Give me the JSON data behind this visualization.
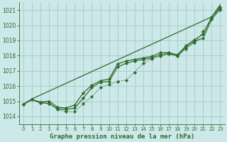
{
  "title": "Graphe pression niveau de la mer (hPa)",
  "bg_color": "#cce8e8",
  "grid_color": "#aacfcf",
  "line_color": "#2d6b2d",
  "xlim": [
    -0.5,
    23.5
  ],
  "ylim": [
    1013.5,
    1021.5
  ],
  "xticks": [
    0,
    1,
    2,
    3,
    4,
    5,
    6,
    7,
    8,
    9,
    10,
    11,
    12,
    13,
    14,
    15,
    16,
    17,
    18,
    19,
    20,
    21,
    22,
    23
  ],
  "yticks": [
    1014,
    1015,
    1016,
    1017,
    1018,
    1019,
    1020,
    1021
  ],
  "line1_x": [
    0,
    1,
    2,
    3,
    4,
    5,
    6,
    7,
    8,
    9,
    10,
    11,
    12,
    13,
    14,
    15,
    16,
    17,
    18,
    19,
    20,
    21,
    22,
    23
  ],
  "line1_y": [
    1014.8,
    1015.1,
    1014.9,
    1014.85,
    1014.45,
    1014.3,
    1014.3,
    1014.85,
    1015.3,
    1015.9,
    1016.1,
    1016.3,
    1016.4,
    1016.9,
    1017.5,
    1017.8,
    1017.95,
    1018.1,
    1017.95,
    1018.45,
    1018.85,
    1019.6,
    1020.45,
    1021.0
  ],
  "line1_style": ":",
  "line2_x": [
    0,
    1,
    2,
    3,
    4,
    5,
    6,
    7,
    8,
    9,
    10,
    11,
    12,
    13,
    14,
    15,
    16,
    17,
    18,
    19,
    20,
    21,
    22,
    23
  ],
  "line2_y": [
    1014.8,
    1015.1,
    1014.9,
    1014.85,
    1014.5,
    1014.45,
    1014.55,
    1015.2,
    1015.9,
    1016.25,
    1016.3,
    1017.25,
    1017.5,
    1017.65,
    1017.75,
    1017.85,
    1018.05,
    1018.15,
    1018.0,
    1018.55,
    1018.95,
    1019.15,
    1020.4,
    1021.1
  ],
  "line2_style": "-",
  "line3_x": [
    0,
    1,
    2,
    3,
    4,
    5,
    6,
    7,
    8,
    9,
    10,
    11,
    12,
    13,
    14,
    15,
    16,
    17,
    18,
    19,
    20,
    21,
    22,
    23
  ],
  "line3_y": [
    1014.8,
    1015.1,
    1014.95,
    1015.0,
    1014.6,
    1014.55,
    1014.75,
    1015.55,
    1016.05,
    1016.35,
    1016.45,
    1017.45,
    1017.65,
    1017.75,
    1017.85,
    1017.95,
    1018.2,
    1018.2,
    1018.05,
    1018.65,
    1019.05,
    1019.4,
    1020.55,
    1021.2
  ],
  "line3_style": "-",
  "line4_x": [
    0,
    1,
    22,
    23
  ],
  "line4_y": [
    1014.8,
    1015.15,
    1020.55,
    1021.35
  ],
  "line4_style": "-"
}
